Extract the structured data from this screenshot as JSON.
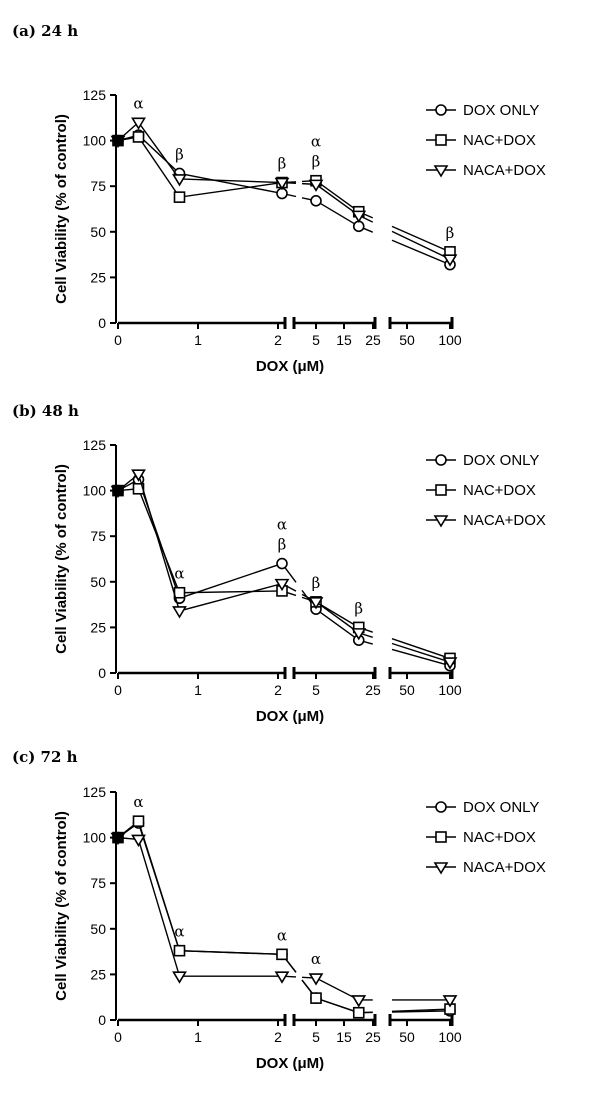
{
  "legend": [
    "DOX ONLY",
    "NAC+DOX",
    "NACA+DOX"
  ],
  "panels": [
    {
      "title": "(a) 24 h",
      "x_ticks": [
        "0",
        "1",
        "2",
        "5",
        "15",
        "25",
        "50",
        "100"
      ],
      "y_ticks": [
        "0",
        "25",
        "50",
        "75",
        "100",
        "125"
      ],
      "ylabel": "Cell Viability (% of control)",
      "xlabel": "DOX (μM)",
      "annotations": [
        {
          "x": 0.25,
          "lines": [
            "α"
          ]
        },
        {
          "x": 0.75,
          "lines": [
            "β"
          ]
        },
        {
          "x": 2,
          "lines": [
            "β"
          ]
        },
        {
          "x": 5,
          "lines": [
            "α",
            "β"
          ]
        },
        {
          "x": 100,
          "lines": [
            "β"
          ]
        }
      ]
    },
    {
      "title": "(b) 48 h",
      "x_ticks": [
        "0",
        "1",
        "2",
        "5",
        "25",
        "50",
        "100"
      ],
      "y_ticks": [
        "0",
        "25",
        "50",
        "75",
        "100",
        "125"
      ],
      "ylabel": "Cell Viability (% of control)",
      "xlabel": "DOX (μM)",
      "annotations": [
        {
          "x": 0.75,
          "lines": [
            "α"
          ]
        },
        {
          "x": 2,
          "lines": [
            "α",
            "β"
          ]
        },
        {
          "x": 5,
          "lines": [
            "β"
          ]
        },
        {
          "x": 20,
          "lines": [
            "β"
          ]
        }
      ]
    },
    {
      "title": "(c) 72 h",
      "x_ticks": [
        "0",
        "1",
        "2",
        "5",
        "15",
        "25",
        "50",
        "100"
      ],
      "y_ticks": [
        "0",
        "25",
        "50",
        "75",
        "100",
        "125"
      ],
      "ylabel": "Cell Viability (% of control)",
      "xlabel": "DOX (μM)",
      "annotations": [
        {
          "x": 0.25,
          "lines": [
            "α"
          ]
        },
        {
          "x": 0.75,
          "lines": [
            "α"
          ]
        },
        {
          "x": 2,
          "lines": [
            "α"
          ]
        },
        {
          "x": 5,
          "lines": [
            "α"
          ]
        }
      ]
    }
  ],
  "chart_data": [
    {
      "type": "line",
      "title": "(a) 24 h",
      "xlabel": "DOX (μM)",
      "ylabel": "Cell Viability (% of control)",
      "ylim": [
        0,
        125
      ],
      "x_axis": "broken",
      "x": [
        0,
        0.25,
        0.75,
        2,
        5,
        20,
        100
      ],
      "series": [
        {
          "name": "DOX ONLY",
          "marker": "circle",
          "values": [
            100,
            103,
            82,
            71,
            67,
            53,
            32
          ]
        },
        {
          "name": "NAC+DOX",
          "marker": "square",
          "values": [
            100,
            102,
            69,
            77,
            78,
            61,
            39
          ]
        },
        {
          "name": "NACA+DOX",
          "marker": "triangle-down",
          "values": [
            100,
            110,
            79,
            77,
            76,
            59,
            35
          ]
        }
      ]
    },
    {
      "type": "line",
      "title": "(b) 48 h",
      "xlabel": "DOX (μM)",
      "ylabel": "Cell Viability (% of control)",
      "ylim": [
        0,
        125
      ],
      "x_axis": "broken",
      "x": [
        0,
        0.25,
        0.75,
        2,
        5,
        20,
        100
      ],
      "series": [
        {
          "name": "DOX ONLY",
          "marker": "circle",
          "values": [
            100,
            106,
            41,
            60,
            35,
            18,
            4
          ]
        },
        {
          "name": "NAC+DOX",
          "marker": "square",
          "values": [
            100,
            101,
            44,
            45,
            39,
            25,
            8
          ]
        },
        {
          "name": "NACA+DOX",
          "marker": "triangle-down",
          "values": [
            100,
            109,
            34,
            49,
            39,
            22,
            6
          ]
        }
      ]
    },
    {
      "type": "line",
      "title": "(c) 72 h",
      "xlabel": "DOX (μM)",
      "ylabel": "Cell Viability (% of control)",
      "ylim": [
        0,
        125
      ],
      "x_axis": "broken",
      "x": [
        0,
        0.25,
        0.75,
        2,
        5,
        20,
        100
      ],
      "series": [
        {
          "name": "DOX ONLY",
          "marker": "circle",
          "values": [
            100,
            108,
            38,
            36,
            12,
            4,
            5
          ]
        },
        {
          "name": "NAC+DOX",
          "marker": "square",
          "values": [
            100,
            109,
            38,
            36,
            12,
            4,
            6
          ]
        },
        {
          "name": "NACA+DOX",
          "marker": "triangle-down",
          "values": [
            100,
            99,
            24,
            24,
            23,
            11,
            11
          ]
        }
      ]
    }
  ]
}
